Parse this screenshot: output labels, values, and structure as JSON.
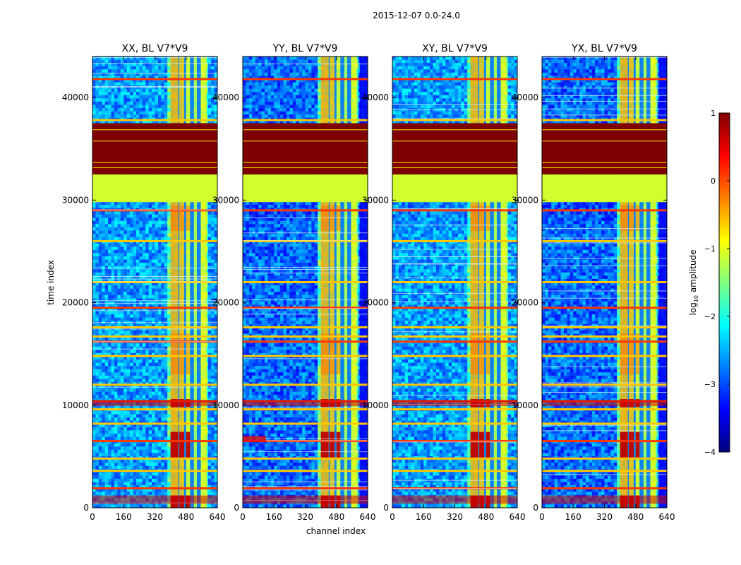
{
  "figure_title": "2015-12-07 0.0-24.0",
  "chart_data": {
    "type": "heatmap",
    "suptitle": "2015-12-07 0.0-24.0",
    "panels": [
      {
        "name": "XX",
        "title": "XX, BL V7*V9"
      },
      {
        "name": "YY",
        "title": "YY, BL V7*V9"
      },
      {
        "name": "XY",
        "title": "XY, BL V7*V9"
      },
      {
        "name": "YX",
        "title": "YX, BL V7*V9"
      }
    ],
    "xlabel": "channel index",
    "ylabel": "time index",
    "xlim": [
      0,
      640
    ],
    "ylim": [
      0,
      44000
    ],
    "xticks": [
      0,
      160,
      320,
      480,
      640
    ],
    "yticks": [
      0,
      10000,
      20000,
      30000,
      40000
    ],
    "colorbar": {
      "label": "log10 amplitude",
      "label_prefix": "log",
      "label_sub": "10",
      "label_suffix": " amplitude",
      "range": [
        -4,
        1
      ],
      "ticks": [
        -4,
        -3,
        -2,
        -1,
        0,
        1
      ],
      "colors": [
        "#00007f",
        "#0000ff",
        "#007fff",
        "#00ffff",
        "#7fff7f",
        "#ffff00",
        "#ff7f00",
        "#ff0000",
        "#7f0000"
      ]
    },
    "features": {
      "saturated_band_time": [
        32500,
        37500
      ],
      "flagged_band_time": [
        29800,
        32500
      ],
      "rfi_channel_range": [
        390,
        600
      ],
      "high_rfi_time_ranges": [
        [
          0,
          1200
        ],
        [
          4800,
          7400
        ],
        [
          9800,
          10600
        ]
      ]
    }
  }
}
